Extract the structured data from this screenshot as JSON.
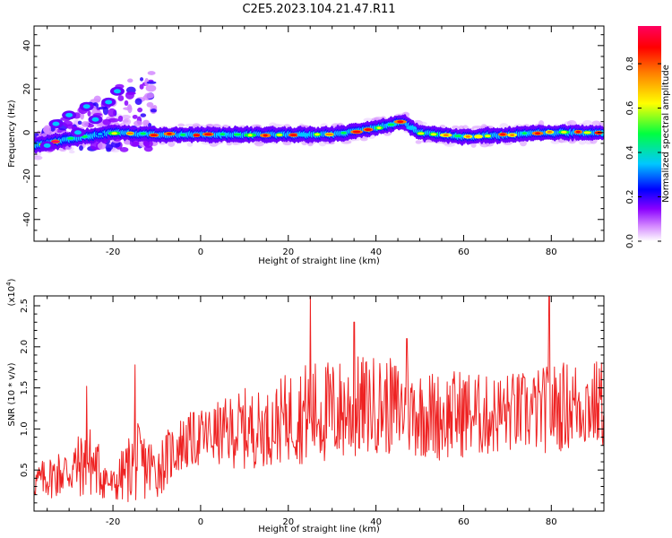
{
  "title": "C2E5.2023.104.21.47.R11",
  "chart_data": [
    {
      "type": "heatmap",
      "xlabel": "Height of straight line (km)",
      "ylabel": "Frequency (Hz)",
      "xlim": [
        -38,
        92
      ],
      "ylim": [
        -50,
        49
      ],
      "xticks": [
        -20,
        0,
        20,
        40,
        60,
        80
      ],
      "yticks": [
        -40,
        -20,
        0,
        20,
        40
      ],
      "colorbar": {
        "label": "Normalized spectral amplitude",
        "range": [
          0,
          0.97
        ],
        "ticks": [
          0.0,
          0.2,
          0.4,
          0.6,
          0.8
        ],
        "colormap": [
          "#ffffff",
          "#d48aff",
          "#8a00ff",
          "#0000ff",
          "#00c8ff",
          "#00ff40",
          "#ffff00",
          "#ff8000",
          "#ff0000",
          "#ff0060"
        ]
      },
      "ridge": {
        "x": [
          -38,
          -30,
          -20,
          -10,
          0,
          10,
          20,
          30,
          40,
          46,
          50,
          60,
          70,
          80,
          92
        ],
        "y": [
          -6,
          -3,
          0,
          -1,
          -1,
          -1,
          -1,
          -1,
          2,
          5,
          0,
          -2,
          -1,
          0,
          0
        ]
      },
      "scatter_region": {
        "x": [
          -38,
          -10
        ],
        "y": [
          -10,
          32
        ]
      }
    },
    {
      "type": "line",
      "xlabel": "Height of straight line (km)",
      "ylabel": "SNR (10 * v/v)",
      "yscale_label": "(x10",
      "yscale_exp": "4",
      "yscale_close": ")",
      "xlim": [
        -38,
        92
      ],
      "ylim": [
        0.0,
        2.62
      ],
      "xticks": [
        -20,
        0,
        20,
        40,
        60,
        80
      ],
      "yticks": [
        0.5,
        1.0,
        1.5,
        2.0,
        2.5
      ],
      "series": [
        {
          "color": "#ee2222",
          "x": [
            -38,
            -30,
            -25,
            -20,
            -15,
            -10,
            -5,
            0,
            5,
            10,
            15,
            20,
            25,
            30,
            35,
            40,
            45,
            50,
            55,
            60,
            65,
            70,
            75,
            80,
            85,
            92
          ],
          "mean": [
            0.35,
            0.5,
            0.6,
            0.3,
            0.6,
            0.5,
            0.8,
            0.9,
            0.95,
            1.0,
            1.0,
            1.15,
            1.2,
            1.2,
            1.25,
            1.3,
            1.25,
            1.2,
            1.15,
            1.2,
            1.15,
            1.2,
            1.2,
            1.25,
            1.3,
            1.3
          ],
          "amp": [
            0.2,
            0.35,
            0.45,
            0.2,
            0.5,
            0.35,
            0.35,
            0.35,
            0.4,
            0.5,
            0.45,
            0.55,
            0.65,
            0.65,
            0.65,
            0.6,
            0.6,
            0.55,
            0.55,
            0.55,
            0.5,
            0.5,
            0.5,
            0.55,
            0.55,
            0.55
          ],
          "peaks": [
            [
              -26,
              1.52
            ],
            [
              -15,
              1.78
            ],
            [
              25,
              2.65
            ],
            [
              35,
              2.3
            ],
            [
              47,
              2.1
            ],
            [
              79.5,
              2.62
            ]
          ]
        }
      ]
    }
  ]
}
